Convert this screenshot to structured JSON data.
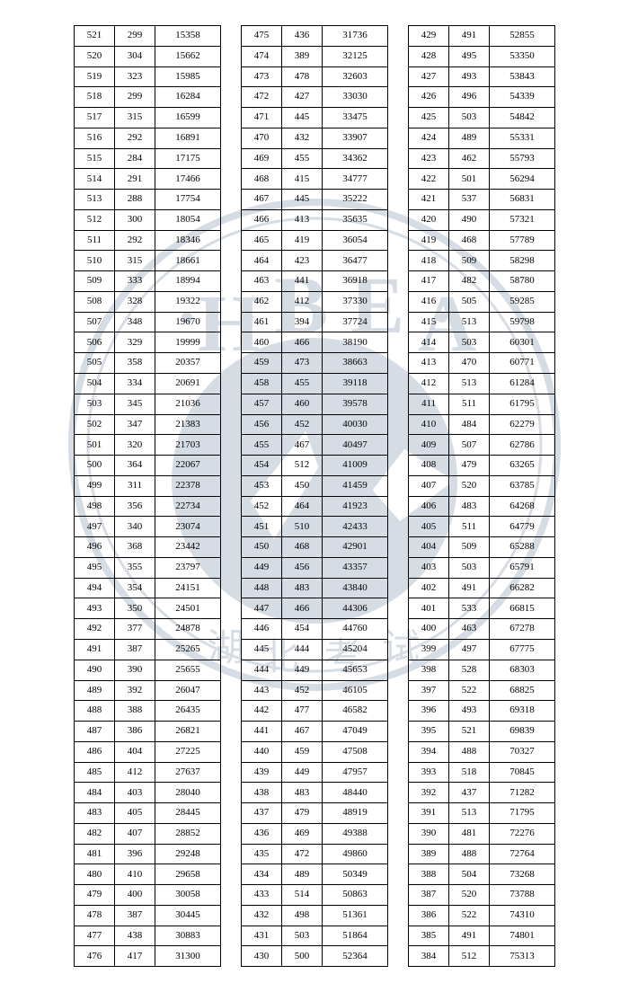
{
  "watermark": {
    "outer_stroke": "#8a9cb5",
    "inner_fill": "#8a9cb5",
    "text": "HBEA",
    "text_color": "#8a9cb5",
    "opacity": 0.35
  },
  "tables": [
    {
      "columns": [
        "c1",
        "c2",
        "c3"
      ],
      "rows": [
        [
          521,
          299,
          15358
        ],
        [
          520,
          304,
          15662
        ],
        [
          519,
          323,
          15985
        ],
        [
          518,
          299,
          16284
        ],
        [
          517,
          315,
          16599
        ],
        [
          516,
          292,
          16891
        ],
        [
          515,
          284,
          17175
        ],
        [
          514,
          291,
          17466
        ],
        [
          513,
          288,
          17754
        ],
        [
          512,
          300,
          18054
        ],
        [
          511,
          292,
          18346
        ],
        [
          510,
          315,
          18661
        ],
        [
          509,
          333,
          18994
        ],
        [
          508,
          328,
          19322
        ],
        [
          507,
          348,
          19670
        ],
        [
          506,
          329,
          19999
        ],
        [
          505,
          358,
          20357
        ],
        [
          504,
          334,
          20691
        ],
        [
          503,
          345,
          21036
        ],
        [
          502,
          347,
          21383
        ],
        [
          501,
          320,
          21703
        ],
        [
          500,
          364,
          22067
        ],
        [
          499,
          311,
          22378
        ],
        [
          498,
          356,
          22734
        ],
        [
          497,
          340,
          23074
        ],
        [
          496,
          368,
          23442
        ],
        [
          495,
          355,
          23797
        ],
        [
          494,
          354,
          24151
        ],
        [
          493,
          350,
          24501
        ],
        [
          492,
          377,
          24878
        ],
        [
          491,
          387,
          25265
        ],
        [
          490,
          390,
          25655
        ],
        [
          489,
          392,
          26047
        ],
        [
          488,
          388,
          26435
        ],
        [
          487,
          386,
          26821
        ],
        [
          486,
          404,
          27225
        ],
        [
          485,
          412,
          27637
        ],
        [
          484,
          403,
          28040
        ],
        [
          483,
          405,
          28445
        ],
        [
          482,
          407,
          28852
        ],
        [
          481,
          396,
          29248
        ],
        [
          480,
          410,
          29658
        ],
        [
          479,
          400,
          30058
        ],
        [
          478,
          387,
          30445
        ],
        [
          477,
          438,
          30883
        ],
        [
          476,
          417,
          31300
        ]
      ]
    },
    {
      "columns": [
        "c1",
        "c2",
        "c3"
      ],
      "rows": [
        [
          475,
          436,
          31736
        ],
        [
          474,
          389,
          32125
        ],
        [
          473,
          478,
          32603
        ],
        [
          472,
          427,
          33030
        ],
        [
          471,
          445,
          33475
        ],
        [
          470,
          432,
          33907
        ],
        [
          469,
          455,
          34362
        ],
        [
          468,
          415,
          34777
        ],
        [
          467,
          445,
          35222
        ],
        [
          466,
          413,
          35635
        ],
        [
          465,
          419,
          36054
        ],
        [
          464,
          423,
          36477
        ],
        [
          463,
          441,
          36918
        ],
        [
          462,
          412,
          37330
        ],
        [
          461,
          394,
          37724
        ],
        [
          460,
          466,
          38190
        ],
        [
          459,
          473,
          38663
        ],
        [
          458,
          455,
          39118
        ],
        [
          457,
          460,
          39578
        ],
        [
          456,
          452,
          40030
        ],
        [
          455,
          467,
          40497
        ],
        [
          454,
          512,
          41009
        ],
        [
          453,
          450,
          41459
        ],
        [
          452,
          464,
          41923
        ],
        [
          451,
          510,
          42433
        ],
        [
          450,
          468,
          42901
        ],
        [
          449,
          456,
          43357
        ],
        [
          448,
          483,
          43840
        ],
        [
          447,
          466,
          44306
        ],
        [
          446,
          454,
          44760
        ],
        [
          445,
          444,
          45204
        ],
        [
          444,
          449,
          45653
        ],
        [
          443,
          452,
          46105
        ],
        [
          442,
          477,
          46582
        ],
        [
          441,
          467,
          47049
        ],
        [
          440,
          459,
          47508
        ],
        [
          439,
          449,
          47957
        ],
        [
          438,
          483,
          48440
        ],
        [
          437,
          479,
          48919
        ],
        [
          436,
          469,
          49388
        ],
        [
          435,
          472,
          49860
        ],
        [
          434,
          489,
          50349
        ],
        [
          433,
          514,
          50863
        ],
        [
          432,
          498,
          51361
        ],
        [
          431,
          503,
          51864
        ],
        [
          430,
          500,
          52364
        ]
      ]
    },
    {
      "columns": [
        "c1",
        "c2",
        "c3"
      ],
      "rows": [
        [
          429,
          491,
          52855
        ],
        [
          428,
          495,
          53350
        ],
        [
          427,
          493,
          53843
        ],
        [
          426,
          496,
          54339
        ],
        [
          425,
          503,
          54842
        ],
        [
          424,
          489,
          55331
        ],
        [
          423,
          462,
          55793
        ],
        [
          422,
          501,
          56294
        ],
        [
          421,
          537,
          56831
        ],
        [
          420,
          490,
          57321
        ],
        [
          419,
          468,
          57789
        ],
        [
          418,
          509,
          58298
        ],
        [
          417,
          482,
          58780
        ],
        [
          416,
          505,
          59285
        ],
        [
          415,
          513,
          59798
        ],
        [
          414,
          503,
          60301
        ],
        [
          413,
          470,
          60771
        ],
        [
          412,
          513,
          61284
        ],
        [
          411,
          511,
          61795
        ],
        [
          410,
          484,
          62279
        ],
        [
          409,
          507,
          62786
        ],
        [
          408,
          479,
          63265
        ],
        [
          407,
          520,
          63785
        ],
        [
          406,
          483,
          64268
        ],
        [
          405,
          511,
          64779
        ],
        [
          404,
          509,
          65288
        ],
        [
          403,
          503,
          65791
        ],
        [
          402,
          491,
          66282
        ],
        [
          401,
          533,
          66815
        ],
        [
          400,
          463,
          67278
        ],
        [
          399,
          497,
          67775
        ],
        [
          398,
          528,
          68303
        ],
        [
          397,
          522,
          68825
        ],
        [
          396,
          493,
          69318
        ],
        [
          395,
          521,
          69839
        ],
        [
          394,
          488,
          70327
        ],
        [
          393,
          518,
          70845
        ],
        [
          392,
          437,
          71282
        ],
        [
          391,
          513,
          71795
        ],
        [
          390,
          481,
          72276
        ],
        [
          389,
          488,
          72764
        ],
        [
          388,
          504,
          73268
        ],
        [
          387,
          520,
          73788
        ],
        [
          386,
          522,
          74310
        ],
        [
          385,
          491,
          74801
        ],
        [
          384,
          512,
          75313
        ]
      ]
    }
  ]
}
